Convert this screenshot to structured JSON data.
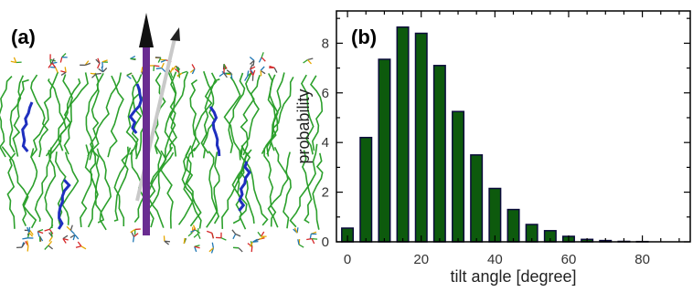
{
  "panel_a": {
    "label": "(a)",
    "lipid_color": "#2ca02c",
    "molecule_color": "#1f2fbf",
    "arrow_color": "#6a2c91",
    "arrow_head_color": "#111111"
  },
  "chart_data": {
    "type": "bar",
    "panel_label": "(b)",
    "title": "",
    "xlabel": "tilt angle [degree]",
    "ylabel": "probability",
    "x": [
      0,
      5,
      10,
      15,
      20,
      25,
      30,
      35,
      40,
      45,
      50,
      55,
      60,
      65,
      70,
      75,
      80,
      85
    ],
    "values": [
      0.55,
      4.2,
      7.35,
      8.65,
      8.4,
      7.1,
      5.25,
      3.5,
      2.15,
      1.3,
      0.7,
      0.45,
      0.22,
      0.1,
      0.05,
      0.02,
      0.01,
      0.0
    ],
    "xticks": [
      "0",
      "20",
      "40",
      "60",
      "80"
    ],
    "yticks": [
      "0",
      "2",
      "4",
      "6",
      "8"
    ],
    "xlim": [
      -3,
      93
    ],
    "ylim": [
      0,
      9.3
    ],
    "bar_color": "#0d5a0d",
    "bar_edge_color": "#0a0a3a",
    "grid": false
  }
}
